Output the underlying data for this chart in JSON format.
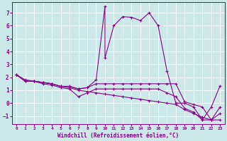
{
  "xlabel": "Windchill (Refroidissement éolien,°C)",
  "bg_color": "#cce8e8",
  "line_color": "#880088",
  "grid_color": "#aacccc",
  "xlim": [
    -0.5,
    23.5
  ],
  "ylim": [
    -1.6,
    7.8
  ],
  "yticks": [
    -1,
    0,
    1,
    2,
    3,
    4,
    5,
    6,
    7
  ],
  "xticks": [
    0,
    1,
    2,
    3,
    4,
    5,
    6,
    7,
    8,
    9,
    10,
    11,
    12,
    13,
    14,
    15,
    16,
    17,
    18,
    19,
    20,
    21,
    22,
    23
  ],
  "curve_spike_x": [
    0,
    1,
    2,
    3,
    4,
    5,
    6,
    7,
    8,
    9,
    10,
    10,
    11,
    12,
    13,
    14,
    15,
    16,
    17,
    18,
    19,
    20,
    21,
    22,
    23
  ],
  "curve_spike_y": [
    2.2,
    1.7,
    1.7,
    1.6,
    1.5,
    1.3,
    1.3,
    1.1,
    1.2,
    1.8,
    7.5,
    3.5,
    6.0,
    6.7,
    6.65,
    6.4,
    7.0,
    6.0,
    2.5,
    0.0,
    0.0,
    -0.3,
    -1.3,
    -0.3,
    1.35
  ],
  "curve_flat_x": [
    0,
    1,
    2,
    3,
    4,
    5,
    6,
    7,
    8,
    9,
    10,
    11,
    12,
    13,
    14,
    15,
    16,
    17,
    18,
    19,
    20,
    21,
    22,
    23
  ],
  "curve_flat_y": [
    2.2,
    1.7,
    1.7,
    1.6,
    1.5,
    1.3,
    1.3,
    1.1,
    1.2,
    1.5,
    1.5,
    1.5,
    1.5,
    1.5,
    1.5,
    1.5,
    1.5,
    1.5,
    1.5,
    0.1,
    -0.1,
    -0.3,
    -1.3,
    -0.3
  ],
  "curve_low_x": [
    0,
    1,
    2,
    3,
    4,
    5,
    6,
    7,
    8,
    9,
    10,
    11,
    12,
    13,
    14,
    15,
    16,
    17,
    18,
    19,
    20,
    21,
    22,
    23
  ],
  "curve_low_y": [
    2.2,
    1.7,
    1.7,
    1.5,
    1.4,
    1.2,
    1.1,
    0.5,
    0.8,
    1.1,
    1.1,
    1.1,
    1.1,
    1.1,
    1.1,
    1.1,
    1.1,
    0.8,
    0.5,
    -0.4,
    -0.7,
    -1.3,
    -1.3,
    -0.8
  ],
  "curve_diag_x": [
    0,
    1,
    2,
    3,
    4,
    5,
    6,
    7,
    8,
    9,
    10,
    11,
    12,
    13,
    14,
    15,
    16,
    17,
    18,
    19,
    20,
    21,
    22,
    23
  ],
  "curve_diag_y": [
    2.2,
    1.8,
    1.7,
    1.6,
    1.5,
    1.3,
    1.2,
    1.0,
    0.9,
    0.8,
    0.7,
    0.6,
    0.5,
    0.4,
    0.3,
    0.2,
    0.1,
    0.0,
    -0.1,
    -0.5,
    -0.8,
    -1.1,
    -1.3,
    -1.3
  ]
}
